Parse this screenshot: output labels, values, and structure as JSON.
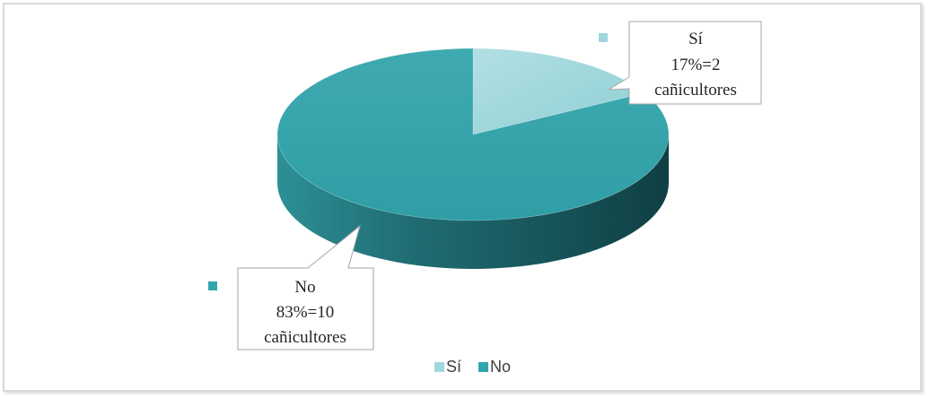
{
  "chart_data": {
    "type": "pie",
    "style": "3d",
    "categories": [
      "Sí",
      "No"
    ],
    "values": [
      17,
      83
    ],
    "counts": [
      2,
      10
    ],
    "colors": [
      "#9fd8dc",
      "#31a5ad"
    ],
    "labels": [
      {
        "category": "Sí",
        "percent_text": "17%=2",
        "unit_text": "cañicultores"
      },
      {
        "category": "No",
        "percent_text": "83%=10",
        "unit_text": "cañicultores"
      }
    ],
    "legend": {
      "position": "bottom",
      "entries": [
        "Sí",
        "No"
      ]
    },
    "title": ""
  }
}
